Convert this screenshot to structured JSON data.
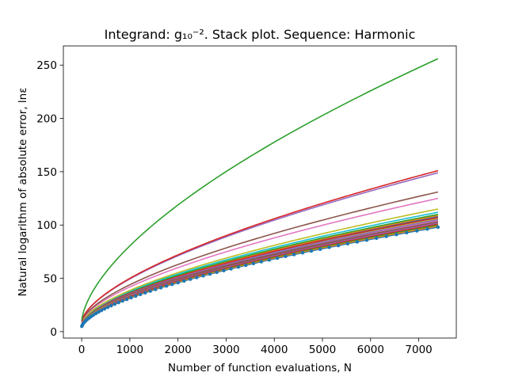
{
  "chart_data": {
    "type": "line",
    "title": "Integrand: g₁₀⁻². Stack plot. Sequence: Harmonic",
    "xlabel": "Number of function evaluations, N",
    "ylabel": "Natural logarithm of absolute error, lnε",
    "xlim": [
      -380,
      7780
    ],
    "ylim": [
      -6,
      268
    ],
    "x_ticks": [
      0,
      1000,
      2000,
      3000,
      4000,
      5000,
      6000,
      7000
    ],
    "x_tick_labels": [
      "0",
      "1000",
      "2000",
      "3000",
      "4000",
      "5000",
      "6000",
      "7000"
    ],
    "y_ticks": [
      0,
      50,
      100,
      150,
      200,
      250
    ],
    "y_tick_labels": [
      "0",
      "50",
      "100",
      "150",
      "200",
      "250"
    ],
    "x_start": 3,
    "x_end": 7400,
    "marker_series_index": 0,
    "grid": false,
    "series": [
      {
        "color": "#1f77b4",
        "values_at_start_end": [
          5,
          98
        ]
      },
      {
        "color": "#ff7f0e",
        "values_at_start_end": [
          5.5,
          99
        ]
      },
      {
        "color": "#2ca02c",
        "values_at_start_end": [
          6,
          100
        ]
      },
      {
        "color": "#d62728",
        "values_at_start_end": [
          6,
          101
        ]
      },
      {
        "color": "#9467bd",
        "values_at_start_end": [
          6.5,
          102
        ]
      },
      {
        "color": "#8c564b",
        "values_at_start_end": [
          6.5,
          103
        ]
      },
      {
        "color": "#e377c2",
        "values_at_start_end": [
          7,
          104
        ]
      },
      {
        "color": "#7f7f7f",
        "values_at_start_end": [
          7,
          105
        ]
      },
      {
        "color": "#bcbd22",
        "values_at_start_end": [
          7,
          106
        ]
      },
      {
        "color": "#17becf",
        "values_at_start_end": [
          7.5,
          107
        ]
      },
      {
        "color": "#1f77b4",
        "values_at_start_end": [
          7.5,
          108
        ]
      },
      {
        "color": "#ff7f0e",
        "values_at_start_end": [
          7.5,
          109
        ]
      },
      {
        "color": "#2ca02c",
        "values_at_start_end": [
          8,
          110
        ]
      },
      {
        "color": "#d62728",
        "values_at_start_end": [
          8,
          107
        ]
      },
      {
        "color": "#9467bd",
        "values_at_start_end": [
          8,
          105
        ]
      },
      {
        "color": "#8c564b",
        "values_at_start_end": [
          8,
          103
        ]
      },
      {
        "color": "#17becf",
        "values_at_start_end": [
          8.5,
          112
        ]
      },
      {
        "color": "#bcbd22",
        "values_at_start_end": [
          8.5,
          115
        ]
      },
      {
        "color": "#e377c2",
        "values_at_start_end": [
          9,
          125
        ]
      },
      {
        "color": "#8c564b",
        "values_at_start_end": [
          9.5,
          131
        ]
      },
      {
        "color": "#9467bd",
        "values_at_start_end": [
          10,
          149
        ]
      },
      {
        "color": "#d62728",
        "values_at_start_end": [
          10,
          151
        ]
      },
      {
        "color": "#2ca02c",
        "values_at_start_end": [
          11,
          256
        ]
      }
    ]
  }
}
